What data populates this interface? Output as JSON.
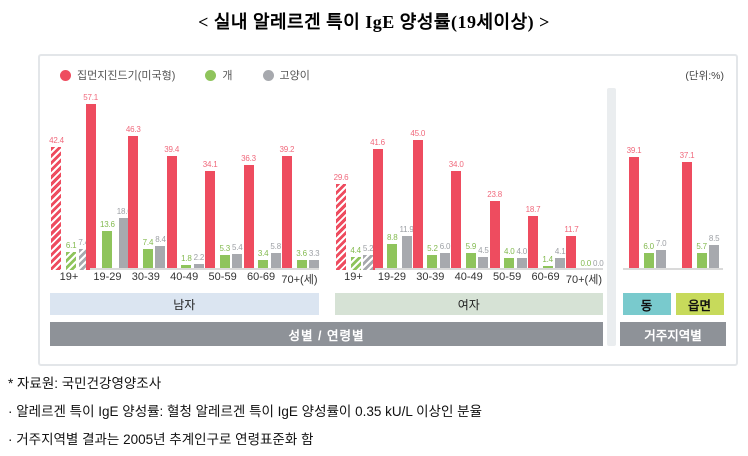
{
  "title": "< 실내 알레르겐 특이 IgE 양성률(19세이상) >",
  "unit_label": "(단위:%)",
  "legend": [
    {
      "key": "dust-mite",
      "label": "집먼지진드기(미국형)"
    },
    {
      "key": "dog",
      "label": "개"
    },
    {
      "key": "cat",
      "label": "고양이"
    }
  ],
  "colors": {
    "bar_red": "#ee4c5f",
    "bar_green": "#8fc45c",
    "bar_gray": "#a7a9ae",
    "label_red": "#f0697c",
    "label_green": "#83ba4f",
    "label_gray": "#9da0a5",
    "band_gray": "#8e9298",
    "male_band": "#dbe5f1",
    "female_band": "#d6e2d5",
    "dong_badge": "#79cacd",
    "eupmyeon_badge": "#c7da5b"
  },
  "chart_data": {
    "type": "bar",
    "unit": "%",
    "ylim": [
      0,
      60
    ],
    "series_names": [
      "집먼지진드기(미국형)",
      "개",
      "고양이"
    ],
    "axis_band_label": "성별 / 연령별",
    "sections": [
      {
        "name": "남자",
        "groups": [
          {
            "label": "19+",
            "hatched": true,
            "values": [
              42.4,
              6.1,
              7.4
            ]
          },
          {
            "label": "19-29",
            "hatched": false,
            "values": [
              57.1,
              13.6,
              18.0
            ]
          },
          {
            "label": "30-39",
            "hatched": false,
            "values": [
              46.3,
              7.4,
              8.4
            ]
          },
          {
            "label": "40-49",
            "hatched": false,
            "values": [
              39.4,
              1.8,
              2.2
            ]
          },
          {
            "label": "50-59",
            "hatched": false,
            "values": [
              34.1,
              5.3,
              5.4
            ]
          },
          {
            "label": "60-69",
            "hatched": false,
            "values": [
              36.3,
              3.4,
              5.8
            ]
          },
          {
            "label": "70+(세)",
            "hatched": false,
            "values": [
              39.2,
              3.6,
              3.3
            ]
          }
        ]
      },
      {
        "name": "여자",
        "groups": [
          {
            "label": "19+",
            "hatched": true,
            "values": [
              29.6,
              4.4,
              5.2
            ]
          },
          {
            "label": "19-29",
            "hatched": false,
            "values": [
              41.6,
              8.8,
              11.9
            ]
          },
          {
            "label": "30-39",
            "hatched": false,
            "values": [
              45.0,
              5.2,
              6.0
            ]
          },
          {
            "label": "40-49",
            "hatched": false,
            "values": [
              34.0,
              5.9,
              4.5
            ]
          },
          {
            "label": "50-59",
            "hatched": false,
            "values": [
              23.8,
              4.0,
              4.0
            ]
          },
          {
            "label": "60-69",
            "hatched": false,
            "values": [
              18.7,
              1.4,
              4.1
            ]
          },
          {
            "label": "70+(세)",
            "hatched": false,
            "values": [
              11.7,
              0.0,
              0.0
            ]
          }
        ]
      }
    ],
    "residence": {
      "band_label": "거주지역별",
      "groups": [
        {
          "label": "동",
          "values": [
            39.1,
            6.0,
            7.0
          ]
        },
        {
          "label": "읍면",
          "values": [
            37.1,
            5.7,
            8.5
          ]
        }
      ]
    }
  },
  "notes": [
    "* 자료원: 국민건강영양조사",
    "· 알레르겐 특이 IgE 양성률: 혈청 알레르겐 특이 IgE 양성률이 0.35 kU/L 이상인 분율",
    "· 거주지역별 결과는 2005년 추계인구로 연령표준화 함"
  ]
}
